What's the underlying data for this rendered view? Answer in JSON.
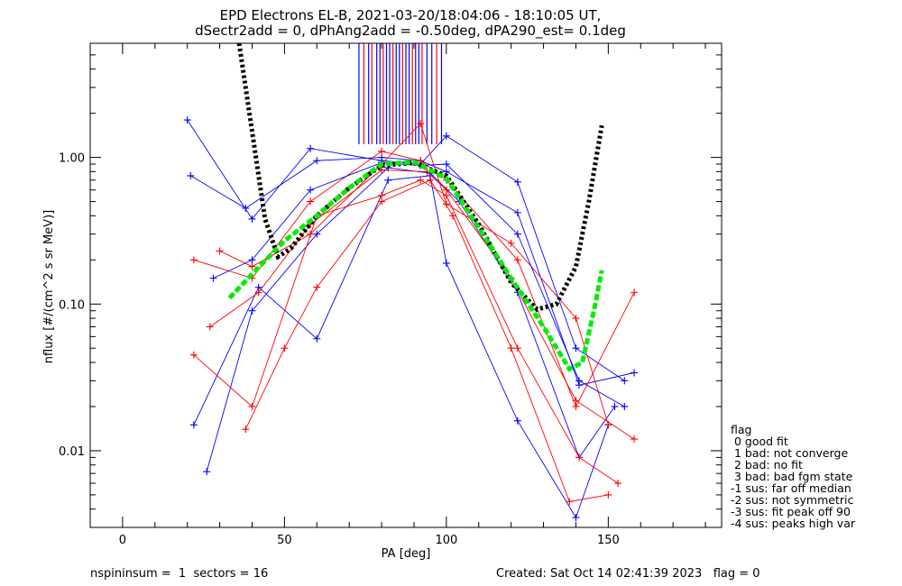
{
  "chart_data": {
    "type": "line",
    "title": "EPD Electrons EL-B, 2021-03-20/18:04:06 - 18:10:05 UT,",
    "subtitle": "dSectr2add = 0, dPhAng2add = -0.50deg, dPA290_est=   0.1deg",
    "xlabel": "PA [deg]",
    "ylabel": "nflux [#/(cm^2 s sr MeV)]",
    "xlim": [
      -10,
      185
    ],
    "ylim": [
      0.003,
      6
    ],
    "yscale": "log",
    "xticks": [
      {
        "v": 0,
        "label": "0"
      },
      {
        "v": 50,
        "label": "50"
      },
      {
        "v": 100,
        "label": "100"
      },
      {
        "v": 150,
        "label": "150"
      }
    ],
    "yticks": [
      {
        "v": 0.01,
        "label": "0.01"
      },
      {
        "v": 0.1,
        "label": "0.10"
      },
      {
        "v": 1,
        "label": "1.00"
      }
    ],
    "series": [
      {
        "color": "#0000ff",
        "x": [
          20,
          40,
          58,
          80,
          92,
          100,
          122,
          140,
          155
        ],
        "values": [
          1.8,
          0.38,
          1.15,
          0.95,
          0.9,
          1.4,
          0.68,
          0.05,
          0.03
        ]
      },
      {
        "color": "#0000ff",
        "x": [
          21,
          38,
          60,
          80,
          92,
          100,
          122,
          141,
          158
        ],
        "values": [
          0.75,
          0.45,
          0.95,
          1.0,
          0.95,
          0.8,
          0.42,
          0.028,
          0.034
        ]
      },
      {
        "color": "#0000ff",
        "x": [
          22,
          42,
          60,
          82,
          95,
          100,
          122,
          140,
          150
        ],
        "values": [
          0.015,
          0.13,
          0.058,
          0.7,
          0.75,
          0.19,
          0.016,
          0.0035,
          0.015
        ]
      },
      {
        "color": "#0000ff",
        "x": [
          26,
          40,
          60,
          82,
          95,
          104,
          122,
          141,
          152
        ],
        "values": [
          0.0072,
          0.09,
          0.3,
          0.85,
          0.78,
          0.5,
          0.12,
          0.009,
          0.02
        ]
      },
      {
        "color": "#ff0000",
        "x": [
          22,
          40,
          58,
          80,
          92,
          100,
          122,
          140,
          158
        ],
        "values": [
          0.2,
          0.15,
          0.5,
          1.1,
          0.95,
          0.7,
          0.2,
          0.02,
          0.12
        ]
      },
      {
        "color": "#ff0000",
        "x": [
          38,
          50,
          60,
          80,
          95,
          102,
          120,
          138,
          150
        ],
        "values": [
          0.014,
          0.05,
          0.13,
          0.5,
          0.7,
          0.4,
          0.05,
          0.0045,
          0.005
        ]
      },
      {
        "color": "#ff0000",
        "x": [
          22,
          40,
          60,
          80,
          92,
          100,
          122,
          141,
          153
        ],
        "values": [
          0.045,
          0.02,
          0.4,
          0.55,
          0.7,
          0.55,
          0.05,
          0.009,
          0.006
        ]
      },
      {
        "color": "#ff0000",
        "x": [
          30,
          40,
          58,
          80,
          92,
          100,
          120,
          140,
          150
        ],
        "values": [
          0.23,
          0.18,
          0.3,
          0.9,
          1.7,
          0.48,
          0.26,
          0.08,
          0.015
        ]
      },
      {
        "color": "#0000ff",
        "x": [
          28,
          40,
          58,
          80,
          92,
          100,
          122,
          141,
          155
        ],
        "values": [
          0.15,
          0.2,
          0.6,
          0.92,
          0.88,
          0.9,
          0.3,
          0.03,
          0.02
        ]
      },
      {
        "color": "#ff0000",
        "x": [
          27,
          42,
          58,
          80,
          94,
          100,
          120,
          140,
          158
        ],
        "values": [
          0.07,
          0.12,
          0.35,
          0.82,
          0.8,
          0.6,
          0.15,
          0.022,
          0.012
        ]
      }
    ],
    "fit_curves": [
      {
        "style": "black-dotted",
        "x": [
          36,
          40,
          44,
          48,
          52,
          56,
          60,
          70,
          80,
          90,
          100,
          110,
          120,
          128,
          134,
          140,
          144,
          148
        ],
        "values": [
          6,
          1.5,
          0.38,
          0.21,
          0.24,
          0.31,
          0.4,
          0.62,
          0.88,
          0.92,
          0.75,
          0.35,
          0.14,
          0.092,
          0.1,
          0.18,
          0.5,
          1.65
        ]
      },
      {
        "style": "green-dashed",
        "x": [
          33,
          40,
          50,
          60,
          70,
          80,
          90,
          100,
          110,
          120,
          130,
          138,
          142,
          146,
          148
        ],
        "values": [
          0.11,
          0.16,
          0.27,
          0.4,
          0.62,
          0.9,
          0.93,
          0.72,
          0.33,
          0.15,
          0.07,
          0.036,
          0.04,
          0.1,
          0.17
        ]
      }
    ],
    "vertical_ticks": [
      {
        "x": 73,
        "color": "#0000ff"
      },
      {
        "x": 74.5,
        "color": "#ff0000"
      },
      {
        "x": 76,
        "color": "#0000ff"
      },
      {
        "x": 77,
        "color": "#ff0000"
      },
      {
        "x": 78.5,
        "color": "#0000ff"
      },
      {
        "x": 79.5,
        "color": "#0000ff"
      },
      {
        "x": 80.5,
        "color": "#ff0000"
      },
      {
        "x": 81.5,
        "color": "#0000ff"
      },
      {
        "x": 82.5,
        "color": "#0000ff"
      },
      {
        "x": 83.5,
        "color": "#ff0000"
      },
      {
        "x": 84.5,
        "color": "#0000ff"
      },
      {
        "x": 85.5,
        "color": "#0000ff"
      },
      {
        "x": 86.5,
        "color": "#ff0000"
      },
      {
        "x": 87.5,
        "color": "#0000ff"
      },
      {
        "x": 88.5,
        "color": "#0000ff"
      },
      {
        "x": 89.5,
        "color": "#ff0000"
      },
      {
        "x": 90.5,
        "color": "#0000ff"
      },
      {
        "x": 91.5,
        "color": "#0000ff"
      },
      {
        "x": 92.5,
        "color": "#ff0000"
      },
      {
        "x": 94,
        "color": "#0000ff"
      },
      {
        "x": 95.5,
        "color": "#0000ff"
      },
      {
        "x": 97,
        "color": "#ff0000"
      },
      {
        "x": 98.5,
        "color": "#0000ff"
      }
    ],
    "legend": {
      "position": "right",
      "items": [
        "flag",
        " 0 good fit",
        " 1 bad: not converge",
        " 2 bad: no fit",
        " 3 bad: bad fgm state",
        "-1 sus: far off median",
        "-2 sus: not symmetric",
        "-3 sus: fit peak off 90",
        "-4 sus: peaks high var"
      ]
    },
    "footer_left": "nspininsum =  1  sectors = 16",
    "footer_right": "Created: Sat Oct 14 02:41:39 2023   flag = 0",
    "colors": {
      "blue": "#0000ff",
      "red": "#ff0000",
      "green": "#00ee00",
      "black": "#000000"
    }
  }
}
